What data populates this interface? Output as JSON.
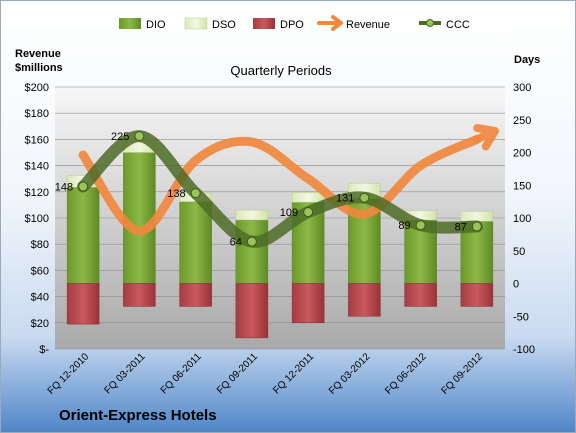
{
  "company": "Orient-Express Hotels",
  "chart_data": {
    "type": "bar",
    "title": "Quarterly Periods",
    "left_axis_label": [
      "Revenue",
      "$millions"
    ],
    "right_axis_label": "Days",
    "left_ylim": [
      0,
      200
    ],
    "left_ticks": [
      "$-",
      "$20",
      "$40",
      "$60",
      "$80",
      "$100",
      "$120",
      "$140",
      "$160",
      "$180",
      "$200"
    ],
    "right_ylim": [
      -100,
      300
    ],
    "right_ticks": [
      "-100",
      "-50",
      "0",
      "50",
      "100",
      "150",
      "200",
      "250",
      "300"
    ],
    "legend_position": "top",
    "categories": [
      "FQ 12-2010",
      "FQ 03-2011",
      "FQ 06-2011",
      "FQ 09-2011",
      "FQ 12-2011",
      "FQ 03-2012",
      "FQ 06-2012",
      "FQ 09-2012"
    ],
    "series": [
      {
        "name": "DIO",
        "type": "stacked-bar",
        "axis": "right",
        "color": "#7aa632",
        "values": [
          147,
          200,
          125,
          97,
          124,
          130,
          97,
          95
        ]
      },
      {
        "name": "DSO",
        "type": "stacked-bar",
        "axis": "right",
        "color": "#e3efc4",
        "values": [
          18,
          20,
          13,
          15,
          15,
          23,
          14,
          15
        ]
      },
      {
        "name": "DPO",
        "type": "stacked-bar",
        "axis": "right",
        "color": "#b84a4f",
        "values": [
          -62,
          -35,
          -35,
          -83,
          -60,
          -50,
          -35,
          -35
        ]
      },
      {
        "name": "Revenue",
        "type": "line",
        "axis": "left",
        "color": "#f0883e",
        "values": [
          148,
          90,
          144,
          158,
          130,
          103,
          140,
          160
        ]
      },
      {
        "name": "CCC",
        "type": "line",
        "axis": "right",
        "color": "#5a7a2e",
        "values": [
          148,
          225,
          138,
          64,
          109,
          131,
          89,
          87
        ]
      }
    ],
    "data_labels": [
      "148",
      "225",
      "138",
      "64",
      "109",
      "131",
      "89",
      "87"
    ]
  }
}
